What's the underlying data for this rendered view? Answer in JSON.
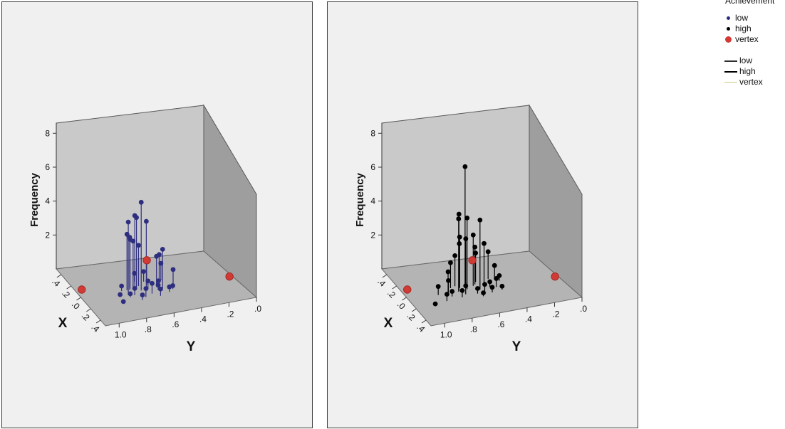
{
  "legend": {
    "title": "Achievement",
    "points": [
      {
        "label": "low",
        "color": "#2e2e80"
      },
      {
        "label": "high",
        "color": "#000000"
      },
      {
        "label": "vertex",
        "color": "#d23a35"
      }
    ],
    "lines": [
      {
        "label": "low",
        "color": "#2e2e2e"
      },
      {
        "label": "high",
        "color": "#000000"
      },
      {
        "label": "vertex",
        "color": "#c8c882"
      }
    ]
  },
  "chart_data": [
    {
      "type": "scatter",
      "style": "3d-spike",
      "ylabel": "Frequency",
      "xlabel": "X",
      "zlabel": "Y",
      "yticks": [
        "2",
        "4",
        "6",
        "8"
      ],
      "xticks": [
        ".4",
        ".2",
        ".0",
        ".2",
        ".4"
      ],
      "zticks": [
        "1.0",
        ".8",
        ".6",
        ".4",
        ".2",
        ".0"
      ],
      "point_color": "#2e2e80",
      "line_color": "#2e2e80",
      "spikes": [
        {
          "y": 0.67,
          "x": 0.04,
          "f": 5.2
        },
        {
          "y": 0.71,
          "x": 0.02,
          "f": 4.4
        },
        {
          "y": 0.69,
          "x": 0.0,
          "f": 4.2
        },
        {
          "y": 0.78,
          "x": 0.08,
          "f": 4.3
        },
        {
          "y": 0.64,
          "x": 0.06,
          "f": 4.1
        },
        {
          "y": 0.76,
          "x": 0.0,
          "f": 3.3
        },
        {
          "y": 0.74,
          "x": 0.0,
          "f": 3.1
        },
        {
          "y": 0.73,
          "x": -0.02,
          "f": 2.9
        },
        {
          "y": 0.7,
          "x": -0.04,
          "f": 2.7
        },
        {
          "y": 0.66,
          "x": -0.04,
          "f": 2.4
        },
        {
          "y": 0.52,
          "x": 0.06,
          "f": 2.3
        },
        {
          "y": 0.55,
          "x": 0.02,
          "f": 1.8
        },
        {
          "y": 0.6,
          "x": -0.04,
          "f": 1.5
        },
        {
          "y": 0.5,
          "x": -0.06,
          "f": 1.6
        },
        {
          "y": 0.48,
          "x": -0.08,
          "f": 1.0
        },
        {
          "y": 0.78,
          "x": 0.12,
          "f": 0.2
        },
        {
          "y": 0.8,
          "x": 0.0,
          "f": 0.3
        },
        {
          "y": 0.84,
          "x": 0.08,
          "f": 0.1
        },
        {
          "y": 0.72,
          "x": 0.2,
          "f": 0.3
        },
        {
          "y": 0.74,
          "x": 0.1,
          "f": 0.4
        },
        {
          "y": 0.68,
          "x": 0.16,
          "f": 0.5
        },
        {
          "y": 0.62,
          "x": 0.12,
          "f": 0.6
        },
        {
          "y": 0.58,
          "x": 0.18,
          "f": 0.4
        },
        {
          "y": 0.62,
          "x": 0.04,
          "f": 0.5
        },
        {
          "y": 0.56,
          "x": 0.08,
          "f": 0.3
        },
        {
          "y": 0.6,
          "x": -0.1,
          "f": 0.6
        },
        {
          "y": 0.52,
          "x": -0.02,
          "f": 0.2
        },
        {
          "y": 0.46,
          "x": 0.1,
          "f": 0.2
        },
        {
          "y": 0.86,
          "x": 0.2,
          "f": 0.1
        },
        {
          "y": 0.42,
          "x": 0.0,
          "f": 0.8
        },
        {
          "y": 0.5,
          "x": 0.14,
          "f": 0.3
        },
        {
          "y": 0.66,
          "x": -0.12,
          "f": 0.5
        }
      ],
      "vertices": [
        {
          "y": 1.05,
          "x": -0.12,
          "f": 0
        },
        {
          "y": 0.02,
          "x": 0.04,
          "f": 0
        },
        {
          "y": 0.44,
          "x": -0.46,
          "f": 0
        }
      ]
    },
    {
      "type": "scatter",
      "style": "3d-spike",
      "ylabel": "Frequency",
      "xlabel": "X",
      "zlabel": "Y",
      "yticks": [
        "2",
        "4",
        "6",
        "8"
      ],
      "xticks": [
        ".4",
        ".2",
        ".0",
        ".2",
        ".4"
      ],
      "zticks": [
        "1.0",
        ".8",
        ".6",
        ".4",
        ".2",
        ".0"
      ],
      "point_color": "#000000",
      "line_color": "#000000",
      "spikes": [
        {
          "y": 0.66,
          "x": -0.02,
          "f": 7.1
        },
        {
          "y": 0.72,
          "x": 0.02,
          "f": 4.5
        },
        {
          "y": 0.73,
          "x": 0.04,
          "f": 4.3
        },
        {
          "y": 0.66,
          "x": 0.02,
          "f": 4.2
        },
        {
          "y": 0.58,
          "x": 0.06,
          "f": 4.1
        },
        {
          "y": 0.6,
          "x": -0.02,
          "f": 3.0
        },
        {
          "y": 0.7,
          "x": -0.02,
          "f": 3.0
        },
        {
          "y": 0.64,
          "x": -0.06,
          "f": 2.7
        },
        {
          "y": 0.68,
          "x": -0.08,
          "f": 2.4
        },
        {
          "y": 0.58,
          "x": -0.04,
          "f": 2.2
        },
        {
          "y": 0.52,
          "x": -0.02,
          "f": 2.4
        },
        {
          "y": 0.56,
          "x": -0.08,
          "f": 1.7
        },
        {
          "y": 0.72,
          "x": -0.06,
          "f": 1.8
        },
        {
          "y": 0.46,
          "x": -0.1,
          "f": 1.6
        },
        {
          "y": 0.76,
          "x": -0.04,
          "f": 1.5
        },
        {
          "y": 0.8,
          "x": 0.02,
          "f": 1.2
        },
        {
          "y": 0.82,
          "x": 0.08,
          "f": 0.9
        },
        {
          "y": 0.42,
          "x": -0.08,
          "f": 0.8
        },
        {
          "y": 0.96,
          "x": 0.2,
          "f": 0.1
        },
        {
          "y": 0.86,
          "x": 0.16,
          "f": 0.4
        },
        {
          "y": 0.8,
          "x": 0.1,
          "f": 0.3
        },
        {
          "y": 0.74,
          "x": 0.14,
          "f": 0.4
        },
        {
          "y": 0.7,
          "x": 0.1,
          "f": 0.5
        },
        {
          "y": 0.62,
          "x": 0.12,
          "f": 0.3
        },
        {
          "y": 0.56,
          "x": 0.1,
          "f": 0.4
        },
        {
          "y": 0.5,
          "x": 0.04,
          "f": 0.3
        },
        {
          "y": 0.46,
          "x": 0.06,
          "f": 0.5
        },
        {
          "y": 0.4,
          "x": -0.04,
          "f": 0.3
        },
        {
          "y": 0.44,
          "x": 0.12,
          "f": 0.2
        },
        {
          "y": 0.88,
          "x": 0.04,
          "f": 0.5
        },
        {
          "y": 0.52,
          "x": 0.14,
          "f": 0.3
        },
        {
          "y": 0.6,
          "x": 0.18,
          "f": 0.2
        }
      ],
      "vertices": [
        {
          "y": 1.05,
          "x": -0.12,
          "f": 0
        },
        {
          "y": 0.02,
          "x": 0.04,
          "f": 0
        },
        {
          "y": 0.44,
          "x": -0.46,
          "f": 0
        }
      ]
    }
  ]
}
